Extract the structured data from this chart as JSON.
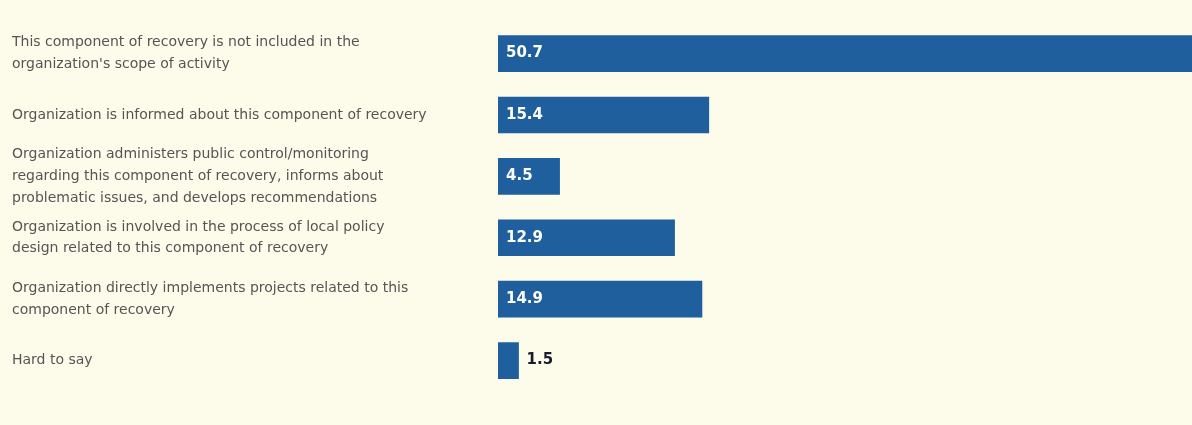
{
  "chart_data": {
    "type": "bar",
    "orientation": "horizontal",
    "categories": [
      "This component of recovery is not included in the organization's scope of activity",
      "Organization is informed about this component of recovery",
      "Organization administers public control/monitoring regarding this component of recovery, informs about problematic issues, and develops recommendations",
      "Organization is involved in the process of local policy design related to this component of recovery",
      "Organization directly implements projects related to this component of recovery",
      "Hard to say"
    ],
    "values": [
      50.7,
      15.4,
      4.5,
      12.9,
      14.9,
      1.5
    ],
    "color": "#1f5f9e",
    "data_labels": true,
    "grid": false,
    "legend": false
  }
}
